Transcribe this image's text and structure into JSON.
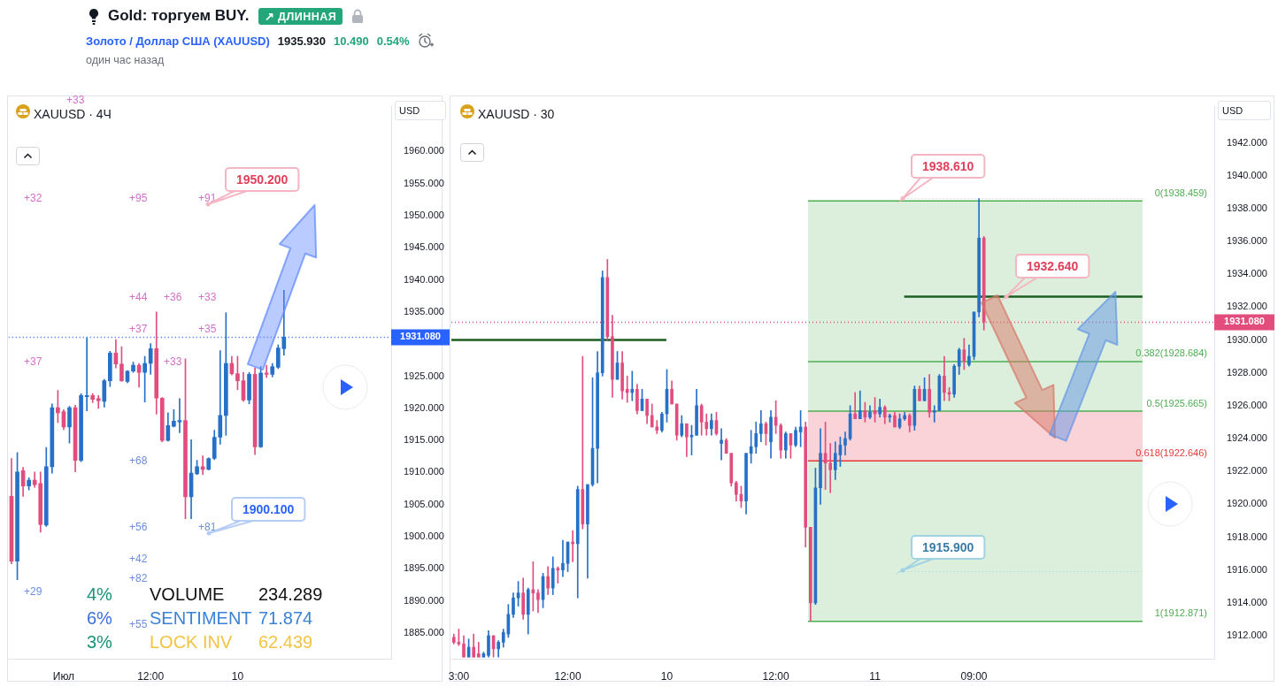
{
  "chart_data": [
    {
      "type": "other",
      "title": "Gold: торгуем BUY.",
      "annotations": [
        "↗ ДЛИННАЯ",
        "Золото / Доллар США (XAUUSD)",
        "1935.930",
        "10.490",
        "0.54%",
        "один час назад"
      ]
    },
    {
      "type": "candlestick",
      "title": "XAUUSD · 4Ч",
      "ylabel": "USD",
      "categories": [
        null,
        null,
        null,
        null,
        null,
        null,
        null,
        null,
        null,
        "Июл",
        null,
        null,
        null,
        null,
        null,
        null,
        null,
        null,
        null,
        null,
        null,
        null,
        null,
        null,
        "12:00",
        null,
        null,
        null,
        null,
        null,
        null,
        null,
        null,
        null,
        null,
        null,
        null,
        null,
        null,
        "10",
        null,
        null,
        null,
        null,
        null,
        null,
        null,
        null,
        null,
        null,
        null,
        null,
        null,
        null,
        null,
        null,
        null,
        null,
        null,
        null,
        null,
        null,
        null,
        null,
        null,
        null
      ],
      "ohlc": [
        [
          1906.3,
          1912.2,
          1895.8,
          1896.2
        ],
        [
          1896.2,
          1913.1,
          1893.3,
          1910.1
        ],
        [
          1910.3,
          1910.8,
          1906.3,
          1907.9
        ],
        [
          1907.9,
          1909.2,
          1907.3,
          1908.8
        ],
        [
          1908.8,
          1910.1,
          1907.7,
          1908.1
        ],
        [
          1908.3,
          1910.1,
          1900.7,
          1901.9
        ],
        [
          1901.8,
          1913.9,
          1901.6,
          1910.9
        ],
        [
          1910.9,
          1920.7,
          1909.9,
          1920.1
        ],
        [
          1920.1,
          1922.8,
          1917.8,
          1919.3
        ],
        [
          1919.5,
          1919.8,
          1916.7,
          1917.1
        ],
        [
          1917.1,
          1920.3,
          1914.6,
          1920.1
        ],
        [
          1920.1,
          1920.5,
          1910.1,
          1911.9
        ],
        [
          1911.9,
          1922.3,
          1911.7,
          1922.0
        ],
        [
          1921.8,
          1931.0,
          1919.6,
          1922.0
        ],
        [
          1922.0,
          1922.3,
          1920.9,
          1921.4
        ],
        [
          1921.5,
          1922.0,
          1920.0,
          1921.2
        ],
        [
          1921.1,
          1924.5,
          1920.2,
          1924.3
        ],
        [
          1924.3,
          1928.9,
          1923.4,
          1928.6
        ],
        [
          1928.6,
          1930.7,
          1926.3,
          1926.9
        ],
        [
          1926.9,
          1929.6,
          1924.2,
          1924.3
        ],
        [
          1924.2,
          1925.9,
          1924.0,
          1925.8
        ],
        [
          1925.8,
          1927.2,
          1925.6,
          1926.7
        ],
        [
          1926.7,
          1927.0,
          1923.3,
          1925.6
        ],
        [
          1925.6,
          1928.1,
          1921.0,
          1927.0
        ],
        [
          1927.0,
          1930.1,
          1925.3,
          1929.3
        ],
        [
          1929.3,
          1935.0,
          1919.1,
          1921.6
        ],
        [
          1921.6,
          1921.7,
          1914.8,
          1915.0
        ],
        [
          1915.0,
          1919.3,
          1914.9,
          1917.3
        ],
        [
          1917.2,
          1919.8,
          1917.1,
          1918.0
        ],
        [
          1917.9,
          1921.5,
          1916.2,
          1918.1
        ],
        [
          1918.1,
          1927.7,
          1902.8,
          1906.2
        ],
        [
          1906.2,
          1915.1,
          1902.8,
          1909.9
        ],
        [
          1909.8,
          1911.9,
          1909.7,
          1910.9
        ],
        [
          1910.9,
          1912.6,
          1909.7,
          1910.5
        ],
        [
          1910.5,
          1912.3,
          1910.4,
          1912.2
        ],
        [
          1912.2,
          1916.6,
          1912.0,
          1915.5
        ],
        [
          1915.5,
          1929.0,
          1914.4,
          1918.9
        ],
        [
          1918.9,
          1934.9,
          1915.8,
          1927.0
        ],
        [
          1927.0,
          1928.1,
          1925.2,
          1925.4
        ],
        [
          1925.4,
          1928.1,
          1922.9,
          1924.3
        ],
        [
          1924.3,
          1925.6,
          1921.1,
          1921.3
        ],
        [
          1921.3,
          1925.6,
          1920.7,
          1925.3
        ],
        [
          1925.3,
          1926.3,
          1912.8,
          1914.0
        ],
        [
          1914.0,
          1926.5,
          1913.9,
          1925.5
        ],
        [
          1925.5,
          1926.7,
          1924.8,
          1925.3
        ],
        [
          1925.3,
          1927.0,
          1924.9,
          1926.5
        ],
        [
          1926.4,
          1929.9,
          1926.2,
          1929.4
        ],
        [
          1929.3,
          1938.4,
          1928.3,
          1931.1
        ],
        null,
        null,
        null,
        null,
        null,
        null,
        null,
        null,
        null,
        null,
        null,
        null,
        null,
        null,
        null,
        null,
        null,
        null
      ],
      "colors": [
        "#e24d7e",
        "#2670c7",
        "#e24d7e",
        "#2670c7",
        "#e24d7e",
        "#e24d7e",
        "#2670c7",
        "#2670c7",
        "#e24d7e",
        "#e24d7e",
        "#2670c7",
        "#e24d7e",
        "#2670c7",
        "#2670c7",
        "#e24d7e",
        "#e24d7e",
        "#2670c7",
        "#2670c7",
        "#e24d7e",
        "#e24d7e",
        "#2670c7",
        "#2670c7",
        "#e24d7e",
        "#2670c7",
        "#2670c7",
        "#e24d7e",
        "#e24d7e",
        "#2670c7",
        "#2670c7",
        "#2670c7",
        "#e24d7e",
        "#2670c7",
        "#2670c7",
        "#e24d7e",
        "#2670c7",
        "#2670c7",
        "#2670c7",
        "#2670c7",
        "#e24d7e",
        "#e24d7e",
        "#e24d7e",
        "#2670c7",
        "#e24d7e",
        "#2670c7",
        "#e24d7e",
        "#2670c7",
        "#2670c7",
        "#2670c7",
        null,
        null,
        null,
        null,
        null,
        null,
        null,
        null,
        null,
        null,
        null,
        null,
        null,
        null,
        null,
        null,
        null,
        null
      ],
      "ylim": [
        1881,
        1967
      ],
      "yticks": [
        {
          "value": 1885,
          "label": "1885.000"
        },
        {
          "value": 1890,
          "label": "1890.000"
        },
        {
          "value": 1895,
          "label": "1895.000"
        },
        {
          "value": 1900,
          "label": "1900.000"
        },
        {
          "value": 1905,
          "label": "1905.000"
        },
        {
          "value": 1910,
          "label": "1910.000"
        },
        {
          "value": 1915,
          "label": "1915.000"
        },
        {
          "value": 1920,
          "label": "1920.000"
        },
        {
          "value": 1925,
          "label": "1925.000"
        },
        {
          "value": 1935,
          "label": "1935.000"
        },
        {
          "value": 1940,
          "label": "1940.000"
        },
        {
          "value": 1945,
          "label": "1945.000"
        },
        {
          "value": 1950,
          "label": "1950.000"
        },
        {
          "value": 1955,
          "label": "1955.000"
        },
        {
          "value": 1960,
          "label": "1960.000"
        }
      ],
      "ref_lines": [
        {
          "axis": "y",
          "value": 1931.08,
          "label": "1931.080",
          "color": "#2962ff",
          "line_style": "dotted"
        }
      ],
      "annotations": [
        "+33",
        "+32",
        "+95",
        "+91",
        "+37",
        "+44",
        "+36",
        "+33",
        "+37",
        "+35",
        "+33",
        "+68",
        "+56",
        "+81",
        "+42",
        "+29",
        "+82",
        "+55",
        "1950.200",
        "1900.100",
        "4%",
        "VOLUME",
        "234.289",
        "6%",
        "SENTIMENT",
        "71.874",
        "3%",
        "LOCK INV",
        "62.439"
      ]
    },
    {
      "type": "candlestick",
      "title": "XAUUSD · 30",
      "ylabel": "USD",
      "categories": [
        null,
        "3:00",
        null,
        null,
        null,
        null,
        null,
        null,
        null,
        null,
        null,
        null,
        null,
        null,
        null,
        null,
        null,
        null,
        null,
        null,
        null,
        null,
        null,
        "12:00",
        null,
        null,
        null,
        null,
        null,
        null,
        null,
        null,
        null,
        null,
        null,
        null,
        null,
        null,
        null,
        null,
        null,
        null,
        null,
        "10",
        null,
        null,
        null,
        null,
        null,
        null,
        null,
        null,
        null,
        null,
        null,
        null,
        null,
        null,
        null,
        null,
        null,
        null,
        null,
        null,
        null,
        "12:00",
        null,
        null,
        null,
        null,
        null,
        null,
        null,
        null,
        null,
        null,
        null,
        null,
        null,
        null,
        null,
        null,
        null,
        null,
        null,
        "11",
        null,
        null,
        null,
        null,
        null,
        null,
        null,
        null,
        null,
        null,
        null,
        null,
        null,
        null,
        null,
        null,
        null,
        null,
        null,
        "09:00",
        null,
        null,
        null,
        null,
        null,
        null,
        null,
        null,
        null,
        null,
        null,
        null,
        null,
        null,
        null,
        null,
        null,
        null,
        null,
        null,
        null,
        null,
        null,
        null,
        null,
        null,
        null,
        null,
        null,
        null,
        null,
        null,
        null,
        null,
        null,
        null,
        null,
        null,
        null,
        null,
        null,
        null,
        null,
        null,
        null,
        null,
        null,
        null
      ],
      "ohlc": [
        [
          1911.9,
          1912.1,
          1911.5,
          1911.6
        ],
        [
          1911.6,
          1912.4,
          1911.4,
          1911.5
        ],
        [
          1911.5,
          1912.0,
          1910.7,
          1910.7
        ],
        [
          1910.7,
          1911.8,
          1910.7,
          1911.3
        ],
        [
          1911.3,
          1912.1,
          1910.7,
          1910.7
        ],
        [
          1910.9,
          1911.6,
          1910.7,
          1910.7
        ],
        [
          1910.7,
          1911.0,
          1910.7,
          1910.9
        ],
        [
          1910.8,
          1912.3,
          1910.7,
          1912.0
        ],
        [
          1912.0,
          1912.0,
          1910.7,
          1911.2
        ],
        [
          1911.2,
          1911.7,
          1910.7,
          1911.6
        ],
        [
          1911.6,
          1912.4,
          1911.3,
          1912.2
        ],
        [
          1912.1,
          1913.9,
          1911.9,
          1913.3
        ],
        [
          1913.3,
          1914.6,
          1913.1,
          1914.3
        ],
        [
          1914.3,
          1915.3,
          1913.8,
          1914.6
        ],
        [
          1914.6,
          1915.5,
          1913.0,
          1913.3
        ],
        [
          1913.3,
          1914.9,
          1912.1,
          1914.8
        ],
        [
          1914.8,
          1916.5,
          1913.5,
          1914.6
        ],
        [
          1914.6,
          1914.8,
          1913.4,
          1914.2
        ],
        [
          1914.2,
          1915.8,
          1913.7,
          1915.6
        ],
        [
          1915.6,
          1916.2,
          1914.5,
          1914.9
        ],
        [
          1914.9,
          1916.8,
          1914.5,
          1916.1
        ],
        [
          1916.1,
          1916.2,
          1915.2,
          1916.0
        ],
        [
          1916.0,
          1917.8,
          1915.6,
          1916.4
        ],
        [
          1916.4,
          1917.7,
          1915.9,
          1917.7
        ],
        [
          1917.7,
          1918.4,
          1916.5,
          1917.6
        ],
        [
          1917.6,
          1921.1,
          1914.3,
          1920.9
        ],
        [
          1920.9,
          1929.0,
          1918.5,
          1918.8
        ],
        [
          1918.8,
          1921.2,
          1915.5,
          1921.2
        ],
        [
          1921.2,
          1927.7,
          1921.1,
          1923.4
        ],
        [
          1923.4,
          1929.3,
          1921.3,
          1928.0
        ],
        [
          1928.0,
          1934.2,
          1927.8,
          1933.8
        ],
        [
          1933.8,
          1934.9,
          1930.0,
          1930.2
        ],
        [
          1930.2,
          1931.5,
          1926.5,
          1927.6
        ],
        [
          1927.6,
          1929.3,
          1927.6,
          1928.6
        ],
        [
          1928.6,
          1929.3,
          1926.4,
          1926.9
        ],
        [
          1927.0,
          1927.8,
          1926.2,
          1926.8
        ],
        [
          1926.8,
          1928.1,
          1926.3,
          1927.0
        ],
        [
          1927.0,
          1927.3,
          1925.5,
          1925.7
        ],
        [
          1925.7,
          1927.0,
          1925.7,
          1926.4
        ],
        [
          1926.4,
          1926.4,
          1924.9,
          1925.4
        ],
        [
          1925.4,
          1926.1,
          1924.7,
          1924.7
        ],
        [
          1924.7,
          1925.1,
          1924.3,
          1924.5
        ],
        [
          1924.5,
          1925.6,
          1924.4,
          1925.5
        ],
        [
          1925.5,
          1928.2,
          1925.0,
          1927.0
        ],
        [
          1927.0,
          1927.5,
          1926.1,
          1926.1
        ],
        [
          1926.1,
          1926.1,
          1923.9,
          1924.2
        ],
        [
          1924.2,
          1925.4,
          1924.1,
          1924.9
        ],
        [
          1924.9,
          1924.9,
          1922.9,
          1924.1
        ],
        [
          1924.1,
          1924.8,
          1923.0,
          1924.2
        ],
        [
          1924.2,
          1927.0,
          1924.2,
          1926.0
        ],
        [
          1926.0,
          1926.1,
          1924.2,
          1925.0
        ],
        [
          1925.0,
          1925.5,
          1924.2,
          1924.6
        ],
        [
          1924.6,
          1925.5,
          1924.2,
          1925.1
        ],
        [
          1925.1,
          1925.6,
          1924.2,
          1924.3
        ],
        [
          1923.7,
          1924.6,
          1922.7,
          1923.9
        ],
        [
          1923.9,
          1924.0,
          1923.1,
          1923.1
        ],
        [
          1923.1,
          1923.1,
          1921.1,
          1921.3
        ],
        [
          1921.3,
          1921.4,
          1920.2,
          1920.6
        ],
        [
          1920.6,
          1921.1,
          1919.8,
          1920.2
        ],
        [
          1920.2,
          1923.1,
          1919.4,
          1923.1
        ],
        [
          1923.1,
          1924.5,
          1922.5,
          1923.5
        ],
        [
          1923.5,
          1925.0,
          1923.1,
          1924.3
        ],
        [
          1924.3,
          1925.7,
          1923.8,
          1924.9
        ],
        [
          1924.9,
          1925.0,
          1923.6,
          1924.3
        ],
        [
          1923.8,
          1925.7,
          1922.8,
          1925.3
        ],
        [
          1925.3,
          1926.3,
          1924.3,
          1924.8
        ],
        [
          1924.8,
          1924.9,
          1922.8,
          1923.3
        ],
        [
          1923.3,
          1924.4,
          1922.8,
          1924.3
        ],
        [
          1924.3,
          1924.3,
          1922.8,
          1923.6
        ],
        [
          1923.6,
          1924.7,
          1923.5,
          1924.5
        ],
        [
          1924.4,
          1925.7,
          1923.5,
          1924.7
        ],
        [
          1924.7,
          1925.0,
          1917.4,
          1918.6
        ],
        [
          1918.6,
          1918.6,
          1912.9,
          1914.0
        ],
        [
          1914.0,
          1922.2,
          1913.9,
          1921.0
        ],
        [
          1921.0,
          1924.6,
          1920.0,
          1923.1
        ],
        [
          1923.1,
          1925.0,
          1920.9,
          1922.5
        ],
        [
          1922.5,
          1923.7,
          1920.7,
          1922.1
        ],
        [
          1922.1,
          1923.8,
          1921.5,
          1923.1
        ],
        [
          1923.0,
          1924.1,
          1922.3,
          1923.6
        ],
        [
          1923.6,
          1924.4,
          1923.0,
          1924.0
        ],
        [
          1924.0,
          1926.0,
          1923.9,
          1925.5
        ],
        [
          1925.5,
          1926.8,
          1925.2,
          1925.2
        ],
        [
          1925.2,
          1926.9,
          1925.2,
          1925.7
        ],
        [
          1925.7,
          1926.2,
          1925.0,
          1925.3
        ],
        [
          1925.3,
          1926.0,
          1925.2,
          1925.6
        ],
        [
          1925.7,
          1926.5,
          1925.0,
          1925.5
        ],
        [
          1925.5,
          1926.4,
          1925.3,
          1925.9
        ],
        [
          1925.9,
          1926.0,
          1924.9,
          1925.3
        ],
        [
          1925.3,
          1925.5,
          1925.0,
          1925.4
        ],
        [
          1925.4,
          1925.6,
          1924.7,
          1924.7
        ],
        [
          1924.7,
          1925.5,
          1924.6,
          1925.2
        ],
        [
          1925.2,
          1925.6,
          1925.1,
          1925.4
        ],
        [
          1925.4,
          1925.5,
          1924.4,
          1924.8
        ],
        [
          1924.8,
          1927.2,
          1924.5,
          1927.0
        ],
        [
          1927.0,
          1927.2,
          1926.3,
          1926.3
        ],
        [
          1926.3,
          1927.7,
          1926.3,
          1927.0
        ],
        [
          1927.0,
          1927.9,
          1925.3,
          1925.6
        ],
        [
          1925.6,
          1926.0,
          1925.0,
          1925.7
        ],
        [
          1925.7,
          1927.9,
          1925.7,
          1927.8
        ],
        [
          1927.8,
          1929.0,
          1926.3,
          1926.8
        ],
        [
          1926.8,
          1927.1,
          1926.3,
          1926.7
        ],
        [
          1926.7,
          1928.5,
          1926.5,
          1928.4
        ],
        [
          1928.4,
          1929.5,
          1927.9,
          1929.4
        ],
        [
          1929.4,
          1930.1,
          1928.2,
          1928.7
        ],
        [
          1928.5,
          1929.7,
          1928.4,
          1929.0
        ],
        [
          1929.0,
          1931.7,
          1928.8,
          1931.7
        ],
        [
          1931.7,
          1938.6,
          1931.4,
          1936.2
        ],
        [
          1936.2,
          1936.3,
          1930.6,
          1931.1
        ],
        null,
        null,
        null,
        null,
        null,
        null,
        null,
        null,
        null,
        null,
        null,
        null,
        null,
        null,
        null,
        null,
        null,
        null,
        null,
        null,
        null,
        null,
        null,
        null,
        null,
        null,
        null,
        null,
        null,
        null,
        null,
        null,
        null,
        null,
        null,
        null,
        null,
        null,
        null,
        null,
        null,
        null,
        null,
        null,
        null,
        null
      ],
      "colors": [
        "#e24d7e",
        "#e24d7e",
        "#e24d7e",
        "#2670c7",
        "#e24d7e",
        "#e24d7e",
        "#2670c7",
        "#2670c7",
        "#e24d7e",
        "#2670c7",
        "#2670c7",
        "#2670c7",
        "#2670c7",
        "#2670c7",
        "#e24d7e",
        "#2670c7",
        "#e24d7e",
        "#e24d7e",
        "#2670c7",
        "#e24d7e",
        "#2670c7",
        "#e24d7e",
        "#2670c7",
        "#2670c7",
        "#e24d7e",
        "#2670c7",
        "#e24d7e",
        "#2670c7",
        "#2670c7",
        "#2670c7",
        "#2670c7",
        "#e24d7e",
        "#e24d7e",
        "#2670c7",
        "#e24d7e",
        "#e24d7e",
        "#2670c7",
        "#e24d7e",
        "#2670c7",
        "#e24d7e",
        "#e24d7e",
        "#e24d7e",
        "#2670c7",
        "#2670c7",
        "#e24d7e",
        "#e24d7e",
        "#2670c7",
        "#e24d7e",
        "#2670c7",
        "#2670c7",
        "#e24d7e",
        "#e24d7e",
        "#2670c7",
        "#e24d7e",
        "#2670c7",
        "#e24d7e",
        "#e24d7e",
        "#e24d7e",
        "#e24d7e",
        "#2670c7",
        "#2670c7",
        "#2670c7",
        "#2670c7",
        "#e24d7e",
        "#2670c7",
        "#e24d7e",
        "#e24d7e",
        "#2670c7",
        "#e24d7e",
        "#2670c7",
        "#2670c7",
        "#e24d7e",
        "#e24d7e",
        "#2670c7",
        "#2670c7",
        "#e24d7e",
        "#e24d7e",
        "#2670c7",
        "#2670c7",
        "#2670c7",
        "#2670c7",
        "#e24d7e",
        "#2670c7",
        "#e24d7e",
        "#2670c7",
        "#e24d7e",
        "#2670c7",
        "#e24d7e",
        "#2670c7",
        "#e24d7e",
        "#2670c7",
        "#2670c7",
        "#e24d7e",
        "#2670c7",
        "#e24d7e",
        "#2670c7",
        "#e24d7e",
        "#2670c7",
        "#2670c7",
        "#e24d7e",
        "#e24d7e",
        "#2670c7",
        "#2670c7",
        "#e24d7e",
        "#2670c7",
        "#2670c7",
        "#2670c7",
        "#e24d7e",
        null,
        null,
        null,
        null,
        null,
        null,
        null,
        null,
        null,
        null,
        null,
        null,
        null,
        null,
        null,
        null,
        null,
        null,
        null,
        null,
        null,
        null,
        null,
        null,
        null,
        null,
        null,
        null,
        null,
        null,
        null,
        null,
        null,
        null,
        null,
        null,
        null,
        null,
        null,
        null,
        null,
        null,
        null,
        null,
        null,
        null
      ],
      "ylim": [
        1910.6,
        1944.2
      ],
      "yticks": [
        {
          "value": 1912,
          "label": "1912.000"
        },
        {
          "value": 1914,
          "label": "1914.000"
        },
        {
          "value": 1916,
          "label": "1916.000"
        },
        {
          "value": 1918,
          "label": "1918.000"
        },
        {
          "value": 1920,
          "label": "1920.000"
        },
        {
          "value": 1922,
          "label": "1922.000"
        },
        {
          "value": 1924,
          "label": "1924.000"
        },
        {
          "value": 1926,
          "label": "1926.000"
        },
        {
          "value": 1928,
          "label": "1928.000"
        },
        {
          "value": 1930,
          "label": "1930.000"
        },
        {
          "value": 1932,
          "label": "1932.000"
        },
        {
          "value": 1934,
          "label": "1934.000"
        },
        {
          "value": 1936,
          "label": "1936.000"
        },
        {
          "value": 1938,
          "label": "1938.000"
        },
        {
          "value": 1940,
          "label": "1940.000"
        },
        {
          "value": 1942,
          "label": "1942.000"
        }
      ],
      "bands": [
        {
          "axis": "y",
          "from": 1912.871,
          "to": 1938.459,
          "color": "#dcefdc"
        },
        {
          "axis": "y",
          "from": 1922.646,
          "to": 1925.665,
          "color": "#f9d3d7"
        }
      ],
      "ref_lines": [
        {
          "axis": "y",
          "value": 1931.08,
          "label": "1931.080",
          "color": "#e24d7e",
          "line_style": "dotted"
        },
        {
          "axis": "y",
          "value": 1938.459,
          "label": "0(1938.459)",
          "color": "#4caf50"
        },
        {
          "axis": "y",
          "value": 1928.684,
          "label": "0.382(1928.684)",
          "color": "#4caf50"
        },
        {
          "axis": "y",
          "value": 1925.665,
          "label": "0.5(1925.665)",
          "color": "#4caf50"
        },
        {
          "axis": "y",
          "value": 1922.646,
          "label": "0.618(1922.646)",
          "color": "#e53935"
        },
        {
          "axis": "y",
          "value": 1912.871,
          "label": "1(1912.871)",
          "color": "#4caf50"
        },
        {
          "axis": "y",
          "value": 1930.0,
          "color": "#1b5e20"
        },
        {
          "axis": "y",
          "value": 1932.64,
          "color": "#1b5e20"
        },
        {
          "axis": "y",
          "value": 1938.61,
          "color": "#f4b6c2",
          "line_style": "dotted"
        },
        {
          "axis": "y",
          "value": 1915.9,
          "color": "#9fd3e3",
          "line_style": "dotted"
        }
      ],
      "annotations": [
        {
          "text": "1938.610",
          "y": 1938.61
        },
        {
          "text": "1932.640",
          "y": 1932.64
        },
        "1915.900"
      ]
    }
  ]
}
